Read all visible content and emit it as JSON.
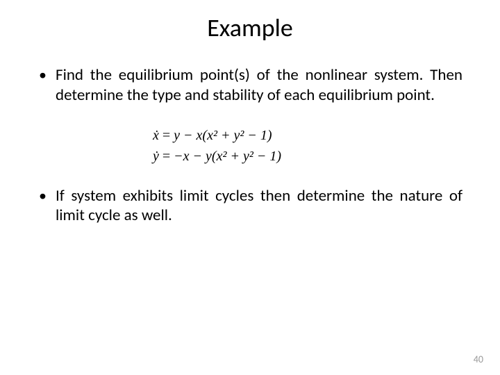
{
  "title": "Example",
  "bullet1": "Find the equilibrium point(s) of the nonlinear system. Then determine the type and stability of each equilibrium point.",
  "bullet2": "If system exhibits limit cycles then determine the nature of limit cycle as well.",
  "eq1_lhs": "ẋ",
  "eq1_rhs": "y − x(x² + y² − 1)",
  "eq2_lhs": "ẏ",
  "eq2_rhs": "−x − y(x² + y² − 1)",
  "page_number": "40",
  "colors": {
    "background": "#ffffff",
    "text": "#000000",
    "page_number": "#9a9a9a"
  },
  "typography": {
    "title_fontsize": 36,
    "body_fontsize": 23,
    "equation_fontsize": 20,
    "pagenum_fontsize": 14
  }
}
